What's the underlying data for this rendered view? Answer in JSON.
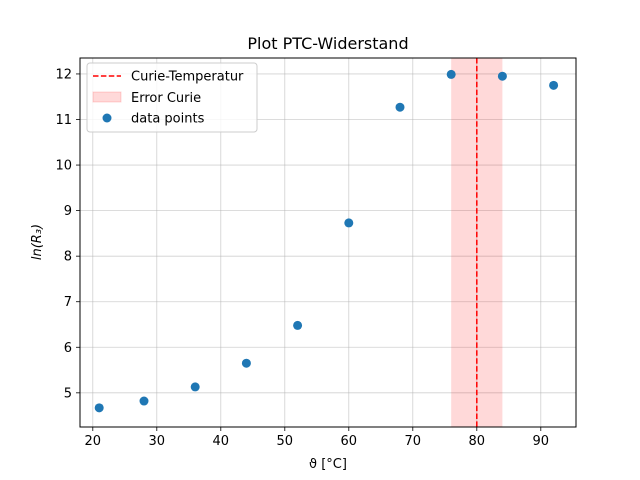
{
  "chart_data": {
    "type": "scatter",
    "title": "Plot PTC-Widerstand",
    "xlabel": "ϑ [°C]",
    "ylabel": "ln(R₃)",
    "xlim": [
      18,
      95.5
    ],
    "ylim": [
      4.25,
      12.35
    ],
    "xticks": [
      20,
      30,
      40,
      50,
      60,
      70,
      80,
      90
    ],
    "yticks": [
      5,
      6,
      7,
      8,
      9,
      10,
      11,
      12
    ],
    "grid": true,
    "legend_position": "upper-left",
    "series": [
      {
        "name": "data points",
        "color": "#1f77b4",
        "points": [
          {
            "x": 21,
            "y": 4.67
          },
          {
            "x": 28,
            "y": 4.82
          },
          {
            "x": 36,
            "y": 5.13
          },
          {
            "x": 44,
            "y": 5.65
          },
          {
            "x": 52,
            "y": 6.48
          },
          {
            "x": 60,
            "y": 8.73
          },
          {
            "x": 68,
            "y": 11.27
          },
          {
            "x": 76,
            "y": 11.99
          },
          {
            "x": 84,
            "y": 11.95
          },
          {
            "x": 92,
            "y": 11.75
          }
        ]
      }
    ],
    "curie_line": {
      "name": "Curie-Temperatur",
      "x": 80,
      "color": "#ff0000",
      "style": "dashed"
    },
    "curie_error": {
      "name": "Error Curie",
      "x_min": 76,
      "x_max": 84,
      "color": "#ff0000",
      "opacity": 0.15
    }
  }
}
